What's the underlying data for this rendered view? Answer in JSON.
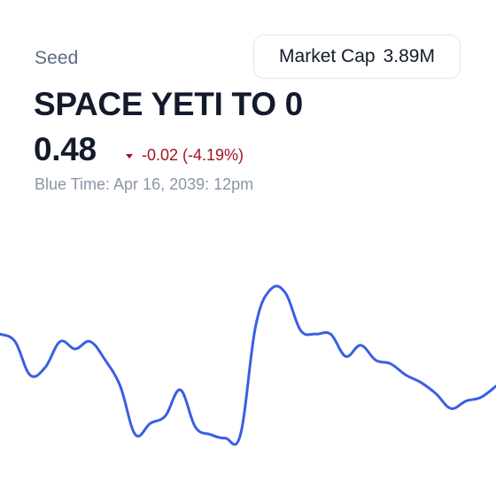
{
  "header": {
    "category": "Seed",
    "market_cap_label": "Market Cap",
    "market_cap_value": "3.89M",
    "title": "SPACE YETI TO 0",
    "price": "0.48",
    "change_abs": "-0.02",
    "change_pct": "(-4.19%)",
    "timestamp": "Blue Time: Apr 16, 2039: 12pm"
  },
  "colors": {
    "line": "#3a5fe5",
    "negative": "#a3121f"
  },
  "icons": {
    "change_direction": "triangle-down-icon"
  },
  "chart_data": {
    "type": "line",
    "title": "",
    "xlabel": "",
    "ylabel": "",
    "grid": false,
    "legend": "none",
    "ylim": [
      0.28,
      0.78
    ],
    "series": [
      {
        "values": [
          0.62,
          0.6,
          0.51,
          0.53,
          0.6,
          0.58,
          0.6,
          0.55,
          0.48,
          0.35,
          0.38,
          0.4,
          0.47,
          0.37,
          0.35,
          0.34,
          0.35,
          0.64,
          0.74,
          0.73,
          0.63,
          0.62,
          0.62,
          0.56,
          0.59,
          0.55,
          0.54,
          0.51,
          0.49,
          0.46,
          0.42,
          0.44,
          0.45,
          0.48
        ]
      }
    ]
  }
}
